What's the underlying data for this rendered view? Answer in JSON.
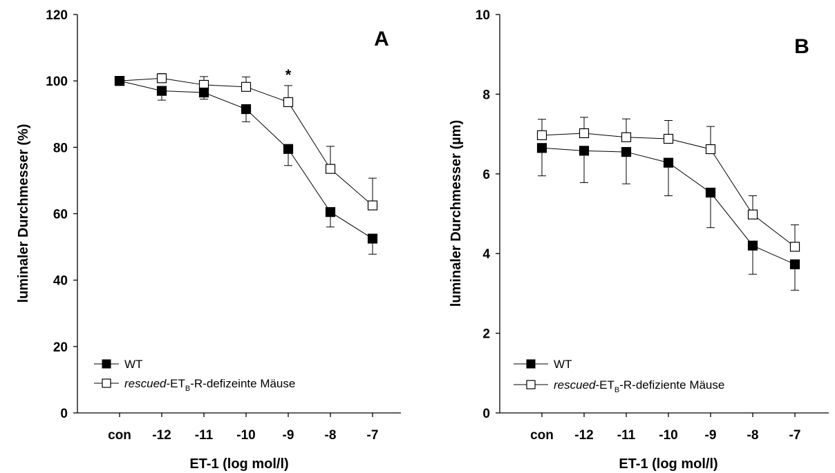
{
  "chart_data": [
    {
      "type": "line",
      "panel_label": "A",
      "categories": [
        "con",
        "-12",
        "-11",
        "-10",
        "-9",
        "-8",
        "-7"
      ],
      "xlabel": "ET-1 (log mol/l)",
      "ylabel": "luminaler Durchmesser (%)",
      "ylim": [
        0,
        120
      ],
      "yticks": [
        "0",
        "20",
        "40",
        "60",
        "80",
        "100",
        "120"
      ],
      "annotations": [
        {
          "text": "*",
          "category": "-9"
        }
      ],
      "legend": {
        "placement": "bottom-left"
      },
      "series": [
        {
          "name": "WT",
          "marker": "filled-square",
          "values": [
            100,
            97,
            96.5,
            91.5,
            79.5,
            60.5,
            52.5
          ],
          "errors": [
            0,
            2.8,
            2,
            3.8,
            5,
            4.5,
            4.7
          ],
          "error_direction": "down"
        },
        {
          "name_parts": {
            "italic": "rescued",
            "base": "-ET",
            "subscript": "B",
            "rest": "-R-defizeinte Mäuse"
          },
          "marker": "open-square",
          "values": [
            100,
            100.8,
            98.8,
            98.2,
            93.6,
            73.5,
            62.5
          ],
          "errors": [
            0,
            1.4,
            2.5,
            3,
            5,
            6.8,
            8.2
          ],
          "error_direction": "up"
        }
      ]
    },
    {
      "type": "line",
      "panel_label": "B",
      "categories": [
        "con",
        "-12",
        "-11",
        "-10",
        "-9",
        "-8",
        "-7"
      ],
      "xlabel": "ET-1 (log mol/l)",
      "ylabel": "luminaler Durchmesser (µm)",
      "ylim": [
        0,
        10
      ],
      "yticks": [
        "0",
        "2",
        "4",
        "6",
        "8",
        "10"
      ],
      "legend": {
        "placement": "bottom-left"
      },
      "series": [
        {
          "name": "WT",
          "marker": "filled-square",
          "values": [
            6.65,
            6.58,
            6.55,
            6.28,
            5.53,
            4.2,
            3.73
          ],
          "errors": [
            0.7,
            0.8,
            0.8,
            0.83,
            0.88,
            0.72,
            0.65
          ],
          "error_direction": "down"
        },
        {
          "name_parts": {
            "italic": "rescued",
            "base": "-ET",
            "subscript": "B",
            "rest": "-R-defiziente Mäuse"
          },
          "marker": "open-square",
          "values": [
            6.97,
            7.02,
            6.92,
            6.88,
            6.62,
            4.98,
            4.17
          ],
          "errors": [
            0.4,
            0.4,
            0.46,
            0.46,
            0.57,
            0.47,
            0.55
          ],
          "error_direction": "up"
        }
      ]
    }
  ]
}
